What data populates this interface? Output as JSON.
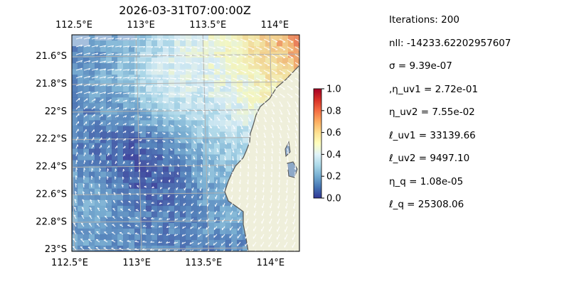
{
  "chart_data": {
    "type": "heatmap",
    "title": "2026-03-31T07:00:00Z",
    "title_overstrike_marks": [
      "¯",
      "¯"
    ],
    "x_tick_labels": [
      "112.5°E",
      "113°E",
      "113.5°E",
      "114°E"
    ],
    "x_ticks": [
      112.5,
      113.0,
      113.5,
      114.0
    ],
    "x_tick_labels_top": [
      "112.5°E",
      "113°E",
      "113.5°E",
      "114°E"
    ],
    "y_tick_labels": [
      "21.6°S",
      "21.8°S",
      "22°S",
      "22.2°S",
      "22.4°S",
      "22.6°S",
      "22.8°S",
      "23°S"
    ],
    "y_ticks": [
      -21.6,
      -21.8,
      -22.0,
      -22.2,
      -22.4,
      -22.6,
      -22.8,
      -23.0
    ],
    "xlim": [
      112.5,
      114.2
    ],
    "ylim": [
      -23.02,
      -21.45
    ],
    "grid": true,
    "colormap": "RdYlBu_r",
    "colorbar": {
      "range": [
        0.0,
        1.0
      ],
      "ticks": [
        0.0,
        0.2,
        0.4,
        0.6,
        0.8,
        1.0
      ],
      "tick_labels": [
        "0.0",
        "0.2",
        "0.4",
        "0.6",
        "0.8",
        "1.0"
      ]
    },
    "overlays": [
      "velocity quiver arrows (white)",
      "coastline with land fill"
    ],
    "colors": {
      "ocean_background": "#a5bfdd",
      "land": "#efefdb",
      "coastline": "#555555",
      "arrows": "#ffffff",
      "grid": "#b0b0b0"
    }
  },
  "params": [
    "Iterations: 200",
    "nll: -14233.62202957607",
    "σ = 9.39e-07",
    ",η_uv1 = 2.72e-01",
    "η_uv2 = 7.55e-02",
    "ℓ_uv1 = 33139.66",
    "ℓ_uv2 = 9497.10",
    "η_q = 1.08e-05",
    "ℓ_q = 25308.06"
  ]
}
